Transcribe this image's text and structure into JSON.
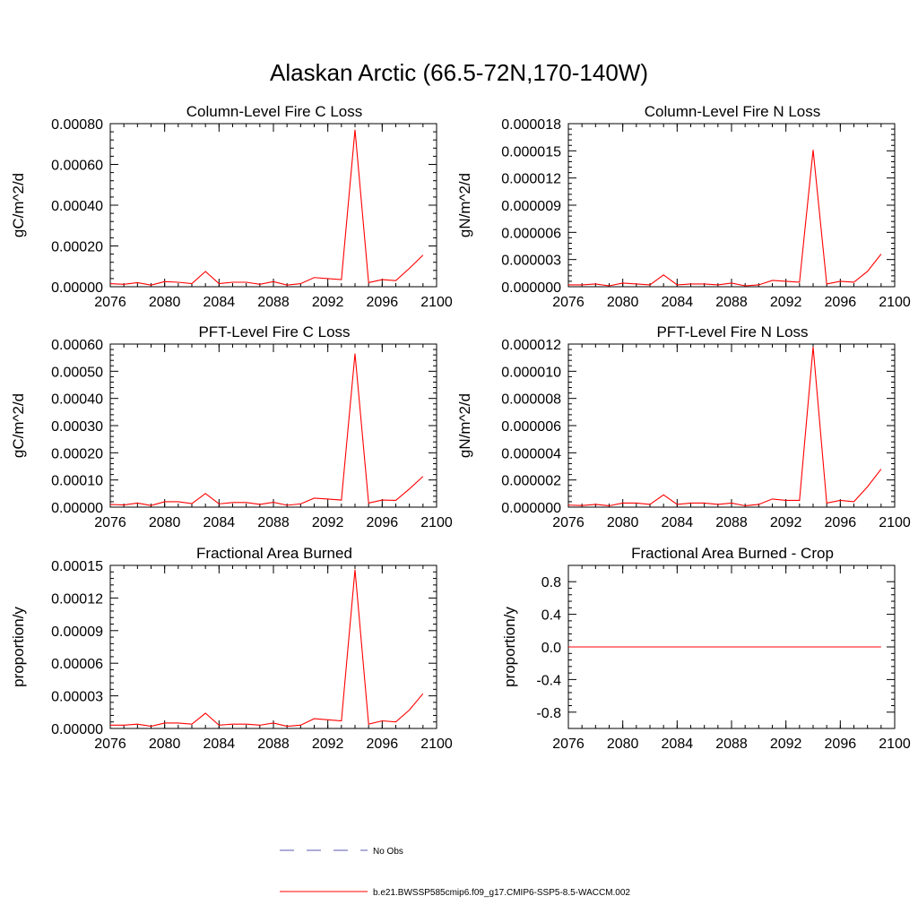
{
  "title": "Alaskan Arctic (66.5-72N,170-140W)",
  "chart_data": [
    {
      "type": "line",
      "title": "Column-Level Fire C Loss",
      "ylabel": "gC/m^2/d",
      "xlim": [
        2076,
        2100
      ],
      "ylim": [
        0,
        0.0008
      ],
      "xticks": [
        "2076",
        "2080",
        "2084",
        "2088",
        "2092",
        "2096",
        "2100"
      ],
      "yticks": [
        "0.00000",
        "0.00020",
        "0.00040",
        "0.00060",
        "0.00080"
      ],
      "x": [
        2076,
        2077,
        2078,
        2079,
        2080,
        2081,
        2082,
        2083,
        2084,
        2085,
        2086,
        2087,
        2088,
        2089,
        2090,
        2091,
        2092,
        2093,
        2094,
        2095,
        2096,
        2097,
        2098,
        2099
      ],
      "series": [
        {
          "name": "b.e21.BWSSP585cmip6.f09_g17.CMIP6-SSP5-8.5-WACCM.002",
          "values": [
            1.5e-05,
            1.2e-05,
            2e-05,
            8e-06,
            2.5e-05,
            2.2e-05,
            1.5e-05,
            7.5e-05,
            1.5e-05,
            2.2e-05,
            2.2e-05,
            1.2e-05,
            2.5e-05,
            8e-06,
            1.5e-05,
            4.5e-05,
            4e-05,
            3.5e-05,
            0.00077,
            2e-05,
            3.5e-05,
            3e-05,
            9e-05,
            0.000155
          ]
        }
      ]
    },
    {
      "type": "line",
      "title": "Column-Level Fire N Loss",
      "ylabel": "gN/m^2/d",
      "xlim": [
        2076,
        2100
      ],
      "ylim": [
        0,
        1.8e-05
      ],
      "xticks": [
        "2076",
        "2080",
        "2084",
        "2088",
        "2092",
        "2096",
        "2100"
      ],
      "yticks": [
        "0.000000",
        "0.000003",
        "0.000006",
        "0.000009",
        "0.000012",
        "0.000015",
        "0.000018"
      ],
      "x": [
        2076,
        2077,
        2078,
        2079,
        2080,
        2081,
        2082,
        2083,
        2084,
        2085,
        2086,
        2087,
        2088,
        2089,
        2090,
        2091,
        2092,
        2093,
        2094,
        2095,
        2096,
        2097,
        2098,
        2099
      ],
      "series": [
        {
          "name": "b.e21.BWSSP585cmip6.f09_g17.CMIP6-SSP5-8.5-WACCM.002",
          "values": [
            2e-07,
            2e-07,
            3e-07,
            1e-07,
            4e-07,
            3e-07,
            2e-07,
            1.3e-06,
            2e-07,
            3e-07,
            3e-07,
            2e-07,
            4e-07,
            1e-07,
            2e-07,
            7e-07,
            6e-07,
            5e-07,
            1.51e-05,
            3e-07,
            6e-07,
            5e-07,
            1.7e-06,
            3.6e-06
          ]
        }
      ]
    },
    {
      "type": "line",
      "title": "PFT-Level Fire C Loss",
      "ylabel": "gC/m^2/d",
      "xlim": [
        2076,
        2100
      ],
      "ylim": [
        0,
        0.0006
      ],
      "xticks": [
        "2076",
        "2080",
        "2084",
        "2088",
        "2092",
        "2096",
        "2100"
      ],
      "yticks": [
        "0.00000",
        "0.00010",
        "0.00020",
        "0.00030",
        "0.00040",
        "0.00050",
        "0.00060"
      ],
      "x": [
        2076,
        2077,
        2078,
        2079,
        2080,
        2081,
        2082,
        2083,
        2084,
        2085,
        2086,
        2087,
        2088,
        2089,
        2090,
        2091,
        2092,
        2093,
        2094,
        2095,
        2096,
        2097,
        2098,
        2099
      ],
      "series": [
        {
          "name": "b.e21.BWSSP585cmip6.f09_g17.CMIP6-SSP5-8.5-WACCM.002",
          "values": [
            1e-05,
            8e-06,
            1.5e-05,
            6e-06,
            2e-05,
            2e-05,
            1.3e-05,
            5e-05,
            1.2e-05,
            1.7e-05,
            1.7e-05,
            1e-05,
            1.8e-05,
            7e-06,
            1.2e-05,
            3.3e-05,
            3e-05,
            2.6e-05,
            0.000565,
            1.5e-05,
            2.6e-05,
            2.5e-05,
            6.7e-05,
            0.000113
          ]
        }
      ]
    },
    {
      "type": "line",
      "title": "PFT-Level Fire N Loss",
      "ylabel": "gN/m^2/d",
      "xlim": [
        2076,
        2100
      ],
      "ylim": [
        0,
        1.2e-05
      ],
      "xticks": [
        "2076",
        "2080",
        "2084",
        "2088",
        "2092",
        "2096",
        "2100"
      ],
      "yticks": [
        "0.000000",
        "0.000002",
        "0.000004",
        "0.000006",
        "0.000008",
        "0.000010",
        "0.000012"
      ],
      "x": [
        2076,
        2077,
        2078,
        2079,
        2080,
        2081,
        2082,
        2083,
        2084,
        2085,
        2086,
        2087,
        2088,
        2089,
        2090,
        2091,
        2092,
        2093,
        2094,
        2095,
        2096,
        2097,
        2098,
        2099
      ],
      "series": [
        {
          "name": "b.e21.BWSSP585cmip6.f09_g17.CMIP6-SSP5-8.5-WACCM.002",
          "values": [
            1.5e-07,
            1.2e-07,
            2e-07,
            1e-07,
            3e-07,
            3e-07,
            2e-07,
            9e-07,
            2e-07,
            3e-07,
            3e-07,
            2e-07,
            3e-07,
            1e-07,
            2e-07,
            6e-07,
            5e-07,
            5e-07,
            1.18e-05,
            3e-07,
            5e-07,
            4e-07,
            1.5e-06,
            2.8e-06
          ]
        }
      ]
    },
    {
      "type": "line",
      "title": "Fractional Area Burned",
      "ylabel": "proportion/y",
      "xlim": [
        2076,
        2100
      ],
      "ylim": [
        0,
        0.00015
      ],
      "xticks": [
        "2076",
        "2080",
        "2084",
        "2088",
        "2092",
        "2096",
        "2100"
      ],
      "yticks": [
        "0.00000",
        "0.00003",
        "0.00006",
        "0.00009",
        "0.00012",
        "0.00015"
      ],
      "x": [
        2076,
        2077,
        2078,
        2079,
        2080,
        2081,
        2082,
        2083,
        2084,
        2085,
        2086,
        2087,
        2088,
        2089,
        2090,
        2091,
        2092,
        2093,
        2094,
        2095,
        2096,
        2097,
        2098,
        2099
      ],
      "series": [
        {
          "name": "b.e21.BWSSP585cmip6.f09_g17.CMIP6-SSP5-8.5-WACCM.002",
          "values": [
            3e-06,
            3e-06,
            4e-06,
            2e-06,
            5e-06,
            5e-06,
            4e-06,
            1.4e-05,
            3e-06,
            4e-06,
            4e-06,
            3e-06,
            5e-06,
            2e-06,
            3e-06,
            9e-06,
            8e-06,
            7e-06,
            0.000146,
            4e-06,
            7e-06,
            6e-06,
            1.7e-05,
            3.2e-05
          ]
        }
      ]
    },
    {
      "type": "line",
      "title": "Fractional Area Burned - Crop",
      "ylabel": "proportion/y",
      "xlim": [
        2076,
        2100
      ],
      "ylim": [
        -1.0,
        1.0
      ],
      "xticks": [
        "2076",
        "2080",
        "2084",
        "2088",
        "2092",
        "2096",
        "2100"
      ],
      "yticks": [
        "-0.8",
        "-0.4",
        "0.0",
        "0.4",
        "0.8"
      ],
      "ytick_values": [
        -0.8,
        -0.4,
        0.0,
        0.4,
        0.8
      ],
      "x": [
        2076,
        2077,
        2078,
        2079,
        2080,
        2081,
        2082,
        2083,
        2084,
        2085,
        2086,
        2087,
        2088,
        2089,
        2090,
        2091,
        2092,
        2093,
        2094,
        2095,
        2096,
        2097,
        2098,
        2099
      ],
      "series": [
        {
          "name": "b.e21.BWSSP585cmip6.f09_g17.CMIP6-SSP5-8.5-WACCM.002",
          "values": [
            0,
            0,
            0,
            0,
            0,
            0,
            0,
            0,
            0,
            0,
            0,
            0,
            0,
            0,
            0,
            0,
            0,
            0,
            0,
            0,
            0,
            0,
            0,
            0
          ]
        }
      ]
    }
  ],
  "legend": {
    "placement": "bottom-center",
    "entries": [
      {
        "label": "No Obs",
        "color": "#5b5bb0",
        "style": "dashed"
      },
      {
        "label": "b.e21.BWSSP585cmip6.f09_g17.CMIP6-SSP5-8.5-WACCM.002",
        "color": "#ff0000",
        "style": "solid"
      }
    ]
  },
  "colors": {
    "series": "#ff0000",
    "axis": "#000000"
  }
}
